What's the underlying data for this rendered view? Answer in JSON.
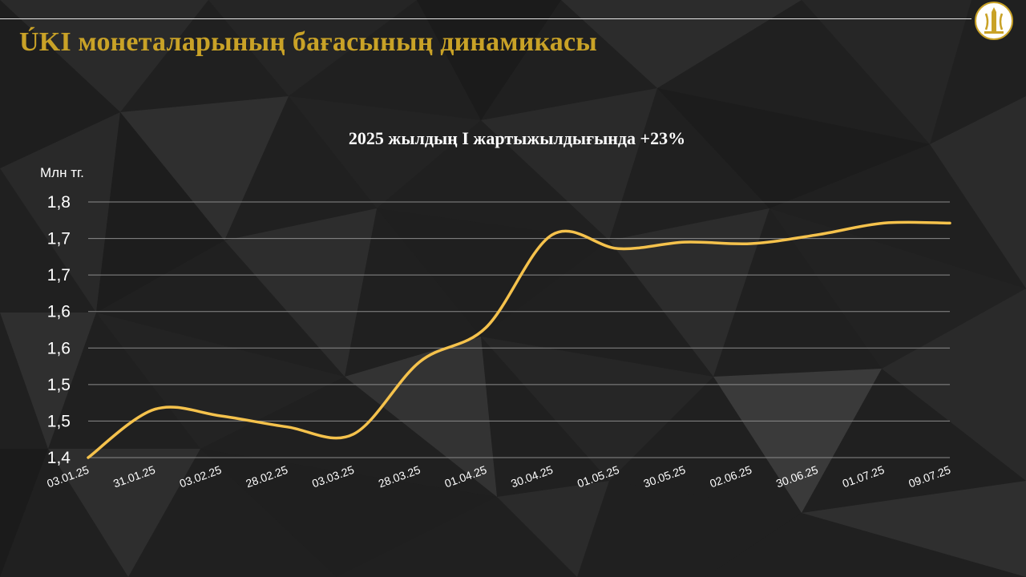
{
  "title": "ÚKI монеталарының бағасының динамикасы",
  "chart_data": {
    "type": "line",
    "title": "2025 жылдың I жартыжылдығында +23%",
    "ylabel": "Млн тг.",
    "xlabel": "",
    "ylim": [
      1.4,
      1.75
    ],
    "yticks": [
      {
        "value": 1.4,
        "label": "1,4"
      },
      {
        "value": 1.45,
        "label": "1,5"
      },
      {
        "value": 1.5,
        "label": "1,5"
      },
      {
        "value": 1.55,
        "label": "1,6"
      },
      {
        "value": 1.6,
        "label": "1,6"
      },
      {
        "value": 1.65,
        "label": "1,7"
      },
      {
        "value": 1.7,
        "label": "1,7"
      },
      {
        "value": 1.75,
        "label": "1,8"
      }
    ],
    "x": [
      "03.01.25",
      "31.01.25",
      "03.02.25",
      "28.02.25",
      "03.03.25",
      "28.03.25",
      "01.04.25",
      "30.04.25",
      "01.05.25",
      "30.05.25",
      "02.06.25",
      "30.06.25",
      "01.07.25",
      "09.07.25"
    ],
    "values": [
      1.4,
      1.466,
      1.457,
      1.442,
      1.432,
      1.531,
      1.578,
      1.705,
      1.686,
      1.695,
      1.693,
      1.705,
      1.721,
      1.721
    ],
    "grid": true,
    "legend": "none",
    "line_color": "#f5c24c",
    "grid_color": "#8a8a8a"
  }
}
